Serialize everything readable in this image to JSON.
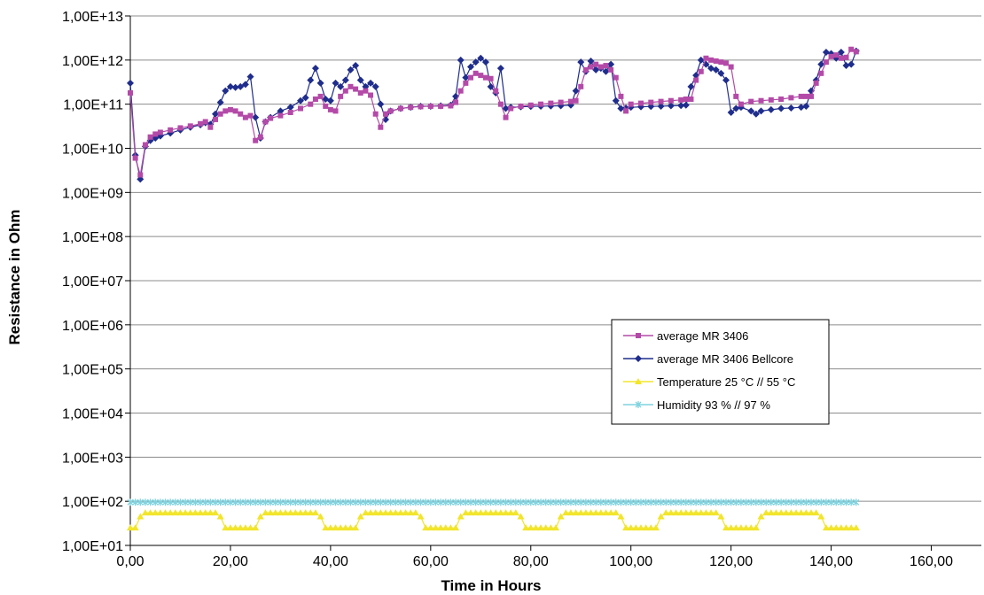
{
  "chart_data": {
    "type": "line",
    "xlabel": "Time in Hours",
    "ylabel": "Resistance in Ohm",
    "xlim": [
      0,
      170
    ],
    "ylim": [
      10,
      10000000000000
    ],
    "y_scale": "log",
    "grid": "horizontal",
    "legend_placement": "right-middle",
    "x_tick_labels": [
      "0,00",
      "20,00",
      "40,00",
      "60,00",
      "80,00",
      "100,00",
      "120,00",
      "140,00",
      "160,00"
    ],
    "x_tick_values": [
      0,
      20,
      40,
      60,
      80,
      100,
      120,
      140,
      160
    ],
    "y_tick_labels": [
      "1,00E+01",
      "1,00E+02",
      "1,00E+03",
      "1,00E+04",
      "1,00E+05",
      "1,00E+06",
      "1,00E+07",
      "1,00E+08",
      "1,00E+09",
      "1,00E+10",
      "1,00E+11",
      "1,00E+12",
      "1,00E+13"
    ],
    "y_tick_values": [
      10,
      100,
      1000,
      10000,
      100000,
      1000000,
      10000000,
      100000000,
      1000000000,
      10000000000,
      100000000000,
      1000000000000,
      10000000000000
    ],
    "series": [
      {
        "name": "average MR 3406",
        "color": "#b44aa8",
        "marker": "square",
        "x": [
          0,
          1,
          2,
          3,
          4,
          5,
          6,
          8,
          10,
          12,
          14,
          15,
          16,
          17,
          18,
          19,
          20,
          21,
          22,
          23,
          24,
          25,
          26,
          27,
          28,
          30,
          32,
          34,
          36,
          37,
          38,
          39,
          40,
          41,
          42,
          43,
          44,
          45,
          46,
          47,
          48,
          49,
          50,
          51,
          52,
          54,
          56,
          58,
          60,
          62,
          64,
          65,
          66,
          67,
          68,
          69,
          70,
          71,
          72,
          73,
          74,
          75,
          76,
          78,
          80,
          82,
          84,
          86,
          88,
          89,
          90,
          91,
          92,
          93,
          94,
          95,
          96,
          97,
          98,
          99,
          100,
          102,
          104,
          106,
          108,
          110,
          111,
          112,
          113,
          114,
          115,
          116,
          117,
          118,
          119,
          120,
          121,
          122,
          124,
          126,
          128,
          130,
          132,
          134,
          135,
          136,
          137,
          138,
          139,
          140,
          141,
          142,
          143,
          144,
          145
        ],
        "y": [
          180000000000,
          6000000000,
          2500000000,
          12000000000,
          18000000000,
          21000000000,
          23000000000,
          26000000000,
          29000000000,
          32000000000,
          36000000000,
          40000000000,
          30000000000,
          45000000000,
          60000000000,
          70000000000,
          75000000000,
          70000000000,
          60000000000,
          50000000000,
          55000000000,
          15000000000,
          18000000000,
          40000000000,
          48000000000,
          55000000000,
          65000000000,
          80000000000,
          100000000000,
          130000000000,
          150000000000,
          90000000000,
          75000000000,
          70000000000,
          150000000000,
          200000000000,
          250000000000,
          220000000000,
          180000000000,
          200000000000,
          160000000000,
          60000000000,
          30000000000,
          60000000000,
          70000000000,
          80000000000,
          85000000000,
          88000000000,
          90000000000,
          90000000000,
          92000000000,
          110000000000,
          200000000000,
          300000000000,
          400000000000,
          500000000000,
          450000000000,
          400000000000,
          380000000000,
          200000000000,
          100000000000,
          50000000000,
          80000000000,
          90000000000,
          95000000000,
          100000000000,
          105000000000,
          110000000000,
          115000000000,
          120000000000,
          250000000000,
          600000000000,
          700000000000,
          800000000000,
          700000000000,
          750000000000,
          600000000000,
          400000000000,
          150000000000,
          70000000000,
          100000000000,
          105000000000,
          110000000000,
          115000000000,
          120000000000,
          125000000000,
          130000000000,
          130000000000,
          350000000000,
          550000000000,
          1100000000000,
          1000000000000,
          950000000000,
          900000000000,
          850000000000,
          700000000000,
          150000000000,
          100000000000,
          115000000000,
          120000000000,
          125000000000,
          130000000000,
          140000000000,
          150000000000,
          150000000000,
          150000000000,
          300000000000,
          500000000000,
          900000000000,
          1200000000000,
          1300000000000,
          1100000000000,
          1150000000000,
          1750000000000,
          1550000000000
        ]
      },
      {
        "name": "average MR 3406 Bellcore",
        "color": "#1f2d8c",
        "marker": "diamond",
        "x": [
          0,
          1,
          2,
          3,
          4,
          5,
          6,
          8,
          10,
          12,
          14,
          15,
          16,
          17,
          18,
          19,
          20,
          21,
          22,
          23,
          24,
          25,
          26,
          27,
          28,
          30,
          32,
          34,
          35,
          36,
          37,
          38,
          39,
          40,
          41,
          42,
          43,
          44,
          45,
          46,
          47,
          48,
          49,
          50,
          51,
          52,
          54,
          56,
          58,
          60,
          62,
          64,
          65,
          66,
          67,
          68,
          69,
          70,
          71,
          72,
          73,
          74,
          75,
          76,
          78,
          80,
          82,
          84,
          86,
          88,
          89,
          90,
          91,
          92,
          93,
          94,
          95,
          96,
          97,
          98,
          99,
          100,
          102,
          104,
          106,
          108,
          110,
          111,
          112,
          113,
          114,
          115,
          116,
          117,
          118,
          119,
          120,
          121,
          122,
          124,
          125,
          126,
          128,
          130,
          132,
          134,
          135,
          136,
          137,
          138,
          139,
          140,
          141,
          142,
          143,
          144,
          145
        ],
        "y": [
          300000000000,
          7000000000,
          2000000000,
          11000000000,
          15000000000,
          17000000000,
          19000000000,
          22000000000,
          26000000000,
          30000000000,
          34000000000,
          38000000000,
          35000000000,
          60000000000,
          110000000000,
          200000000000,
          250000000000,
          240000000000,
          250000000000,
          280000000000,
          420000000000,
          50000000000,
          17000000000,
          40000000000,
          50000000000,
          70000000000,
          85000000000,
          120000000000,
          140000000000,
          350000000000,
          650000000000,
          300000000000,
          130000000000,
          120000000000,
          300000000000,
          250000000000,
          350000000000,
          600000000000,
          750000000000,
          350000000000,
          250000000000,
          300000000000,
          250000000000,
          100000000000,
          45000000000,
          70000000000,
          80000000000,
          85000000000,
          90000000000,
          90000000000,
          92000000000,
          95000000000,
          150000000000,
          1000000000000,
          400000000000,
          700000000000,
          900000000000,
          1100000000000,
          900000000000,
          250000000000,
          180000000000,
          650000000000,
          80000000000,
          85000000000,
          87000000000,
          89000000000,
          90000000000,
          91000000000,
          92000000000,
          95000000000,
          200000000000,
          900000000000,
          550000000000,
          950000000000,
          600000000000,
          650000000000,
          550000000000,
          800000000000,
          120000000000,
          80000000000,
          82000000000,
          85000000000,
          87000000000,
          89000000000,
          90000000000,
          92000000000,
          93000000000,
          95000000000,
          250000000000,
          450000000000,
          1000000000000,
          800000000000,
          650000000000,
          600000000000,
          500000000000,
          350000000000,
          65000000000,
          80000000000,
          85000000000,
          70000000000,
          60000000000,
          70000000000,
          75000000000,
          80000000000,
          82000000000,
          85000000000,
          90000000000,
          200000000000,
          350000000000,
          800000000000,
          1500000000000,
          1400000000000,
          1100000000000,
          1500000000000,
          750000000000,
          800000000000,
          1600000000000
        ]
      },
      {
        "name": "Temperature 25 °C // 55 °C",
        "color": "#f2e52a",
        "marker": "triangle",
        "pattern_x": [
          0,
          1,
          2,
          3,
          17,
          18,
          19,
          25,
          26,
          27,
          37,
          38,
          39,
          45,
          46,
          47,
          57,
          58,
          59,
          65,
          66,
          67,
          77,
          78,
          79,
          85,
          86,
          87,
          97,
          98,
          99,
          105,
          106,
          107,
          117,
          118,
          119,
          125,
          126,
          127,
          137,
          138,
          139,
          145
        ],
        "pattern_y": [
          25,
          25,
          45,
          55,
          55,
          45,
          25,
          25,
          45,
          55,
          55,
          45,
          25,
          25,
          45,
          55,
          55,
          45,
          25,
          25,
          45,
          55,
          55,
          45,
          25,
          25,
          45,
          55,
          55,
          45,
          25,
          25,
          45,
          55,
          55,
          45,
          25,
          25,
          45,
          55,
          55,
          45,
          25,
          25
        ]
      },
      {
        "name": "Humidity 93 % // 97 %",
        "color": "#7fd3df",
        "marker": "star",
        "x_start": 0,
        "x_end": 145,
        "y": 95
      }
    ]
  }
}
